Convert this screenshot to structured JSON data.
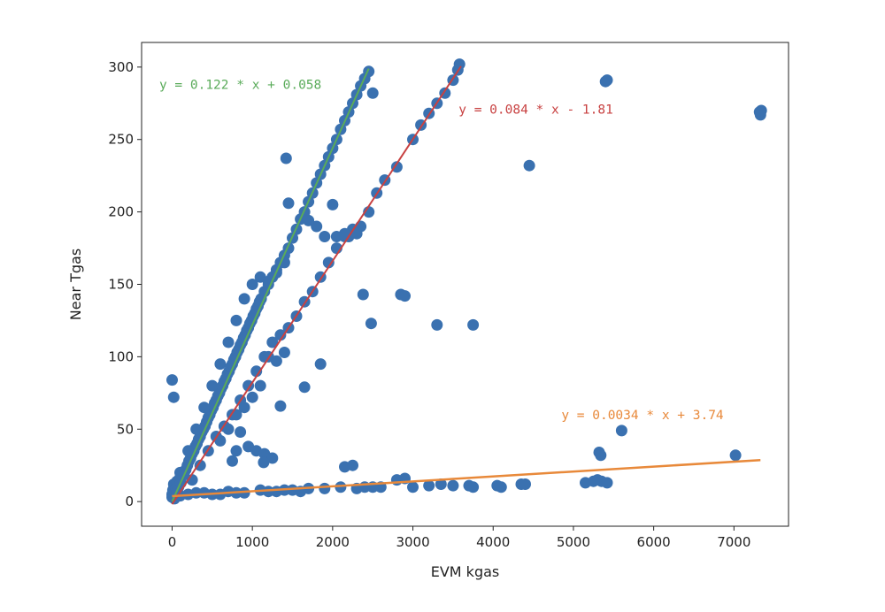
{
  "chart_data": {
    "type": "scatter",
    "title": "",
    "xlabel": "EVM kgas",
    "ylabel": "Near Tgas",
    "xlim": [
      -380,
      7680
    ],
    "ylim": [
      -17,
      317
    ],
    "xticks": [
      0,
      1000,
      2000,
      3000,
      4000,
      5000,
      6000,
      7000
    ],
    "yticks": [
      0,
      50,
      100,
      150,
      200,
      250,
      300
    ],
    "grid": false,
    "legend": "none",
    "point_color": "#3a71b0",
    "series": [
      {
        "points": [
          [
            0,
            5
          ],
          [
            10,
            8
          ],
          [
            20,
            12
          ],
          [
            35,
            6
          ],
          [
            50,
            9
          ],
          [
            60,
            14
          ],
          [
            80,
            10
          ],
          [
            95,
            16
          ],
          [
            110,
            13
          ],
          [
            130,
            18
          ],
          [
            150,
            20
          ],
          [
            170,
            22
          ],
          [
            190,
            25
          ],
          [
            210,
            28
          ],
          [
            230,
            30
          ],
          [
            250,
            33
          ],
          [
            270,
            35
          ],
          [
            290,
            38
          ],
          [
            310,
            40
          ],
          [
            330,
            43
          ],
          [
            350,
            45
          ],
          [
            370,
            48
          ],
          [
            390,
            50
          ],
          [
            410,
            52
          ],
          [
            430,
            55
          ],
          [
            450,
            58
          ],
          [
            470,
            60
          ],
          [
            490,
            63
          ],
          [
            510,
            65
          ],
          [
            530,
            68
          ],
          [
            550,
            70
          ],
          [
            570,
            73
          ],
          [
            590,
            75
          ],
          [
            610,
            78
          ],
          [
            630,
            80
          ],
          [
            650,
            83
          ],
          [
            670,
            85
          ],
          [
            690,
            88
          ],
          [
            710,
            90
          ],
          [
            730,
            93
          ],
          [
            750,
            95
          ],
          [
            770,
            98
          ],
          [
            790,
            100
          ],
          [
            810,
            103
          ],
          [
            830,
            105
          ],
          [
            850,
            108
          ],
          [
            870,
            110
          ],
          [
            890,
            113
          ],
          [
            910,
            115
          ],
          [
            930,
            118
          ],
          [
            950,
            120
          ],
          [
            970,
            123
          ],
          [
            990,
            125
          ],
          [
            1010,
            128
          ],
          [
            1030,
            130
          ],
          [
            1050,
            133
          ],
          [
            1070,
            135
          ],
          [
            1090,
            138
          ],
          [
            1110,
            140
          ],
          [
            1150,
            145
          ],
          [
            1200,
            150
          ],
          [
            1250,
            155
          ],
          [
            1300,
            160
          ],
          [
            1350,
            165
          ],
          [
            1400,
            170
          ],
          [
            1450,
            175
          ],
          [
            1500,
            182
          ],
          [
            1550,
            188
          ],
          [
            1600,
            195
          ],
          [
            1650,
            200
          ],
          [
            1700,
            207
          ],
          [
            1750,
            213
          ],
          [
            1800,
            220
          ],
          [
            1850,
            226
          ],
          [
            1900,
            232
          ],
          [
            1950,
            238
          ],
          [
            2000,
            244
          ],
          [
            2050,
            250
          ],
          [
            2100,
            257
          ],
          [
            2150,
            263
          ],
          [
            2200,
            269
          ],
          [
            2250,
            275
          ],
          [
            2300,
            281
          ],
          [
            2350,
            287
          ],
          [
            2400,
            292
          ],
          [
            2450,
            297
          ],
          [
            2500,
            282
          ],
          [
            100,
            20
          ],
          [
            200,
            35
          ],
          [
            300,
            50
          ],
          [
            400,
            65
          ],
          [
            500,
            80
          ],
          [
            600,
            95
          ],
          [
            700,
            110
          ],
          [
            800,
            125
          ],
          [
            900,
            140
          ],
          [
            1000,
            150
          ],
          [
            1100,
            155
          ],
          [
            1200,
            152
          ],
          [
            1300,
            158
          ],
          [
            1400,
            165
          ],
          [
            250,
            15
          ],
          [
            350,
            25
          ],
          [
            450,
            35
          ],
          [
            550,
            45
          ],
          [
            650,
            52
          ],
          [
            750,
            60
          ],
          [
            850,
            70
          ],
          [
            950,
            80
          ],
          [
            1050,
            90
          ],
          [
            1150,
            100
          ],
          [
            1250,
            110
          ],
          [
            1350,
            115
          ],
          [
            1450,
            120
          ],
          [
            1550,
            128
          ],
          [
            1650,
            138
          ],
          [
            1750,
            145
          ],
          [
            1850,
            155
          ],
          [
            1950,
            165
          ],
          [
            2050,
            175
          ],
          [
            2150,
            183
          ],
          [
            2250,
            188
          ],
          [
            2350,
            190
          ],
          [
            2450,
            200
          ],
          [
            2550,
            213
          ],
          [
            2650,
            222
          ],
          [
            2800,
            231
          ],
          [
            3000,
            250
          ],
          [
            3100,
            260
          ],
          [
            3200,
            268
          ],
          [
            3300,
            275
          ],
          [
            3400,
            282
          ],
          [
            3500,
            291
          ],
          [
            3560,
            298
          ],
          [
            3580,
            302
          ],
          [
            2300,
            185
          ],
          [
            2200,
            183
          ],
          [
            2150,
            185
          ],
          [
            2050,
            183
          ],
          [
            1800,
            190
          ],
          [
            1700,
            194
          ],
          [
            1450,
            206
          ],
          [
            1900,
            183
          ],
          [
            2000,
            205
          ],
          [
            1200,
            100
          ],
          [
            1300,
            97
          ],
          [
            1400,
            103
          ],
          [
            1100,
            80
          ],
          [
            1000,
            72
          ],
          [
            900,
            65
          ],
          [
            800,
            60
          ],
          [
            700,
            50
          ],
          [
            600,
            42
          ],
          [
            850,
            48
          ],
          [
            950,
            38
          ],
          [
            1050,
            35
          ],
          [
            1150,
            33
          ],
          [
            1250,
            30
          ],
          [
            750,
            28
          ],
          [
            800,
            35
          ],
          [
            1140,
            27
          ],
          [
            2380,
            143
          ],
          [
            2850,
            143
          ],
          [
            2900,
            142
          ],
          [
            2480,
            123
          ],
          [
            3300,
            122
          ],
          [
            3750,
            122
          ],
          [
            4450,
            232
          ],
          [
            5400,
            290
          ],
          [
            5420,
            291
          ],
          [
            7330,
            267
          ],
          [
            7340,
            270
          ],
          [
            7320,
            269
          ],
          [
            1420,
            237
          ],
          [
            1350,
            66
          ],
          [
            1650,
            79
          ],
          [
            1850,
            95
          ],
          [
            0,
            84
          ],
          [
            20,
            72
          ],
          [
            5600,
            49
          ],
          [
            5320,
            34
          ],
          [
            5340,
            32
          ],
          [
            7020,
            32
          ],
          [
            2150,
            24
          ],
          [
            2250,
            25
          ],
          [
            2400,
            10
          ],
          [
            2600,
            10
          ],
          [
            2800,
            15
          ],
          [
            2900,
            16
          ],
          [
            3000,
            10
          ],
          [
            3200,
            11
          ],
          [
            3350,
            12
          ],
          [
            3500,
            11
          ],
          [
            3700,
            11
          ],
          [
            3750,
            10
          ],
          [
            4050,
            11
          ],
          [
            4100,
            10
          ],
          [
            4350,
            12
          ],
          [
            4400,
            12
          ],
          [
            5150,
            13
          ],
          [
            5250,
            14
          ],
          [
            5300,
            15
          ],
          [
            5350,
            14
          ],
          [
            5420,
            13
          ],
          [
            300,
            6
          ],
          [
            500,
            5
          ],
          [
            700,
            7
          ],
          [
            900,
            6
          ],
          [
            1100,
            8
          ],
          [
            1300,
            7
          ],
          [
            1500,
            8
          ],
          [
            1700,
            9
          ],
          [
            1900,
            9
          ],
          [
            2100,
            10
          ],
          [
            2300,
            9
          ],
          [
            2500,
            10
          ],
          [
            1600,
            7
          ],
          [
            1400,
            8
          ],
          [
            1200,
            7
          ],
          [
            800,
            6
          ],
          [
            600,
            5
          ],
          [
            400,
            6
          ],
          [
            200,
            5
          ],
          [
            100,
            4
          ],
          [
            0,
            3
          ],
          [
            30,
            2
          ],
          [
            60,
            7
          ]
        ]
      }
    ],
    "fits": [
      {
        "label": "y = 0.122 * x + 0.058",
        "slope": 0.122,
        "intercept": 0.058,
        "x_range": [
          0,
          2450
        ],
        "color": "#5aab5a"
      },
      {
        "label": "y = 0.084 * x - 1.81",
        "slope": 0.084,
        "intercept": -1.81,
        "x_range": [
          0,
          3600
        ],
        "color": "#c84141"
      },
      {
        "label": "y = 0.0034 * x + 3.74",
        "slope": 0.0034,
        "intercept": 3.74,
        "x_range": [
          0,
          7330
        ],
        "color": "#e8893a"
      }
    ]
  }
}
